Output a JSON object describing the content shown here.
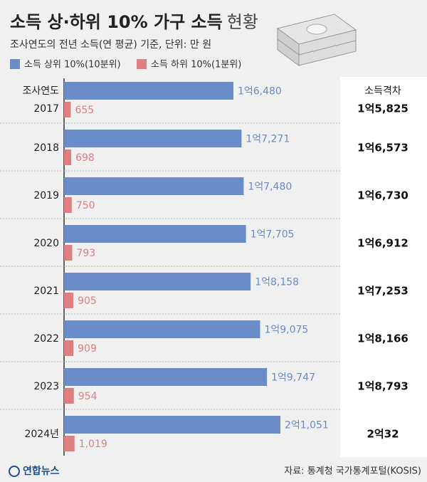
{
  "chart_data": {
    "type": "bar",
    "title": "소득 상·하위 10% 가구 소득",
    "title_suffix": "현황",
    "subtitle": "조사연도의 전년 소득(연 평균) 기준, 단위: 만 원",
    "y_axis_label": "조사연도",
    "categories": [
      "2017",
      "2018",
      "2019",
      "2020",
      "2021",
      "2022",
      "2023",
      "2024년"
    ],
    "series": [
      {
        "name": "소득 상위 10%(10분위)",
        "color": "#6a8cc8",
        "values": [
          16480,
          17271,
          17480,
          17705,
          18158,
          19075,
          19747,
          21051
        ],
        "value_labels": [
          "1억6,480",
          "1억7,271",
          "1억7,480",
          "1억7,705",
          "1억8,158",
          "1억9,075",
          "1억9,747",
          "2억1,051"
        ]
      },
      {
        "name": "소득 하위 10%(1분위)",
        "color": "#e07f7f",
        "values": [
          655,
          698,
          750,
          793,
          905,
          909,
          954,
          1019
        ],
        "value_labels": [
          "655",
          "698",
          "750",
          "793",
          "905",
          "909",
          "954",
          "1,019"
        ]
      }
    ],
    "gap": {
      "name": "소득격차",
      "values": [
        15825,
        16573,
        16730,
        16912,
        17253,
        18166,
        18793,
        20032
      ],
      "value_labels": [
        "1억5,825",
        "1억6,573",
        "1억6,730",
        "1억6,912",
        "1억7,253",
        "1억8,166",
        "1억8,793",
        "2억32"
      ]
    },
    "source": "자료: 통계청 국가통계포털(KOSIS)",
    "logo": "연합뉴스"
  }
}
